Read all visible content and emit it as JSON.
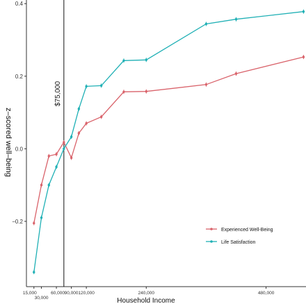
{
  "chart_data": {
    "type": "line",
    "xlabel": "Household Income",
    "ylabel": "z–scored well–being",
    "xlim": [
      0,
      560000
    ],
    "ylim": [
      -0.38,
      0.41
    ],
    "x_ticks": [
      {
        "value": 15000,
        "label": "15,000"
      },
      {
        "value": 30000,
        "label": "30,000"
      },
      {
        "value": 60000,
        "label": "60,000"
      },
      {
        "value": 90000,
        "label": "90,000"
      },
      {
        "value": 120000,
        "label": "120,000"
      },
      {
        "value": 240000,
        "label": "240,000"
      },
      {
        "value": 480000,
        "label": "480,000"
      }
    ],
    "y_ticks": [
      {
        "value": -0.2,
        "label": "−0.2"
      },
      {
        "value": 0.0,
        "label": "0.0"
      },
      {
        "value": 0.2,
        "label": "0.2"
      },
      {
        "value": 0.4,
        "label": "0.4"
      }
    ],
    "vline": {
      "value": 75000,
      "label": "$75,000"
    },
    "legend_position": "bottom-right",
    "grid": false,
    "series": [
      {
        "name": "Experienced Well-Being",
        "color": "#d9626a",
        "x": [
          15000,
          30000,
          45000,
          60000,
          75000,
          90000,
          105000,
          120000,
          150000,
          195000,
          240000,
          360000,
          420000,
          555000
        ],
        "y": [
          -0.205,
          -0.1,
          -0.02,
          -0.015,
          0.018,
          -0.025,
          0.043,
          0.07,
          0.088,
          0.157,
          0.158,
          0.177,
          0.207,
          0.253
        ]
      },
      {
        "name": "Life Satisfaction",
        "color": "#1fb0b5",
        "x": [
          15000,
          30000,
          45000,
          60000,
          75000,
          90000,
          105000,
          120000,
          150000,
          195000,
          240000,
          360000,
          420000,
          555000
        ],
        "y": [
          -0.34,
          -0.19,
          -0.1,
          -0.05,
          0.0,
          0.033,
          0.11,
          0.172,
          0.174,
          0.243,
          0.245,
          0.344,
          0.357,
          0.378
        ]
      }
    ]
  }
}
